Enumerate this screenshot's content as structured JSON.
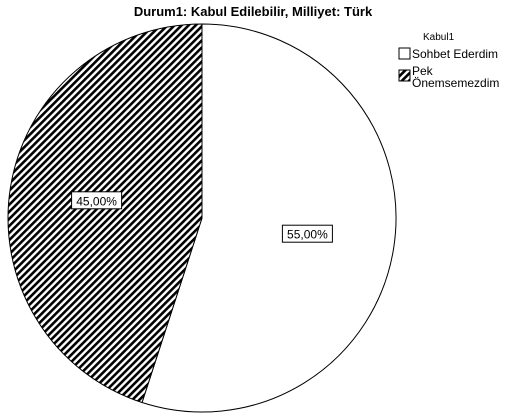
{
  "chart_data": {
    "type": "pie",
    "title": "Durum1: Kabul Edilebilir, Milliyet: Türk",
    "legend_title": "Kabul1",
    "legend_position": "top-right",
    "slices": [
      {
        "label": "Sohbet Ederdim",
        "label_lines": [
          "Sohbet Ederdim"
        ],
        "value": 55.0,
        "display": "55,00%",
        "fill": "#ffffff",
        "pattern": "none"
      },
      {
        "label": "Pek Önemsemezdim",
        "label_lines": [
          "Pek",
          "Önemsemezdim"
        ],
        "value": 45.0,
        "display": "45,00%",
        "fill": "#ffffff",
        "pattern": "diagonal-hatch",
        "hatch_color": "#000000"
      }
    ]
  }
}
